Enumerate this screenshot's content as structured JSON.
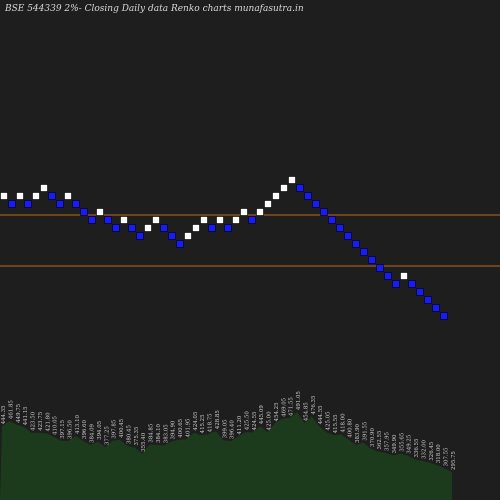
{
  "chart_data": {
    "type": "renko",
    "title": "BSE 544339 2%-  Closing Daily data  Renko  charts munafasutra.in",
    "colors": {
      "background": "#1e1e1e",
      "up_brick": "#ffffff",
      "down_brick": "#1a1aff",
      "brick_border": "#000000",
      "support_line": "#c26b17",
      "volume_area": "#1c3a1c",
      "volume_label": "#cfcfcf"
    },
    "bricks": [
      "up",
      "down",
      "up",
      "down",
      "up",
      "up",
      "down",
      "down",
      "up",
      "down",
      "down",
      "down",
      "up",
      "down",
      "down",
      "up",
      "down",
      "down",
      "up",
      "up",
      "down",
      "down",
      "down",
      "up",
      "up",
      "up",
      "down",
      "up",
      "down",
      "up",
      "up",
      "down",
      "up",
      "up",
      "up",
      "up",
      "up",
      "down",
      "down",
      "down",
      "down",
      "down",
      "down",
      "down",
      "down",
      "down",
      "down",
      "down",
      "down",
      "down",
      "up",
      "down",
      "down",
      "down",
      "down",
      "down"
    ],
    "support_levels": [
      "upper",
      "lower"
    ],
    "volume_labels": [
      "444.35",
      "461.85",
      "449.75",
      "441.15",
      "423.50",
      "423.75",
      "421.80",
      "410.05",
      "397.15",
      "396.50",
      "413.10",
      "396.60",
      "384.09",
      "394.05",
      "377.25",
      "397.85",
      "400.45",
      "380.45",
      "375.35",
      "355.40",
      "384.85",
      "384.10",
      "383.05",
      "394.90",
      "400.65",
      "401.95",
      "424.05",
      "415.25",
      "418.75",
      "428.85",
      "399.05",
      "396.40",
      "411.20",
      "425.50",
      "424.55",
      "445.09",
      "425.00",
      "454.25",
      "469.05",
      "471.55",
      "491.05",
      "454.85",
      "476.35",
      "444.55",
      "425.05",
      "415.55",
      "418.00",
      "400.80",
      "383.90",
      "391.55",
      "370.90",
      "362.55",
      "357.95",
      "349.90",
      "355.65",
      "349.25",
      "336.55",
      "332.00",
      "326.45",
      "318.00",
      "307.55",
      "295.75"
    ]
  }
}
